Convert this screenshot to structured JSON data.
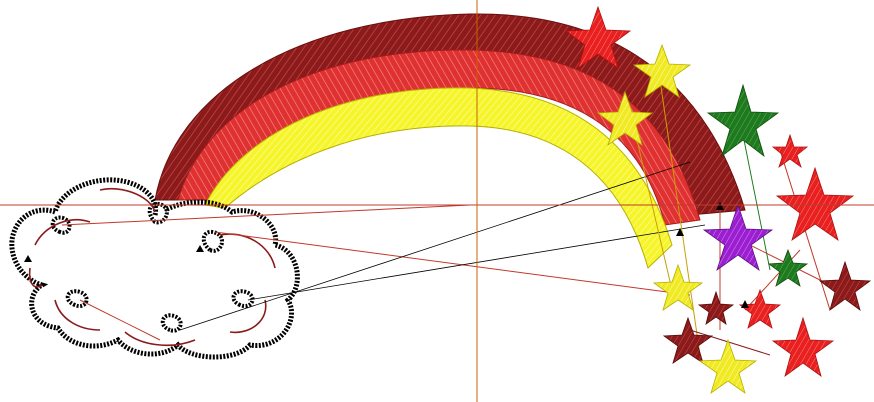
{
  "canvas": {
    "background": "#ffffff",
    "guide_color": "#c0392b",
    "axis_color": "#c86400"
  },
  "design": {
    "elements": [
      {
        "name": "rainbow-band-dark-red",
        "color": "#8b1a1a"
      },
      {
        "name": "rainbow-band-red",
        "color": "#e03131"
      },
      {
        "name": "rainbow-band-yellow",
        "color": "#f5f52a"
      },
      {
        "name": "cloud-outline",
        "color": "#000000"
      },
      {
        "name": "star-red",
        "color": "#e82020"
      },
      {
        "name": "star-yellow",
        "color": "#f0ea22"
      },
      {
        "name": "star-green",
        "color": "#1f7a1f"
      },
      {
        "name": "star-dark-red",
        "color": "#8b1a1a"
      },
      {
        "name": "star-purple",
        "color": "#9b1fd1"
      }
    ]
  }
}
